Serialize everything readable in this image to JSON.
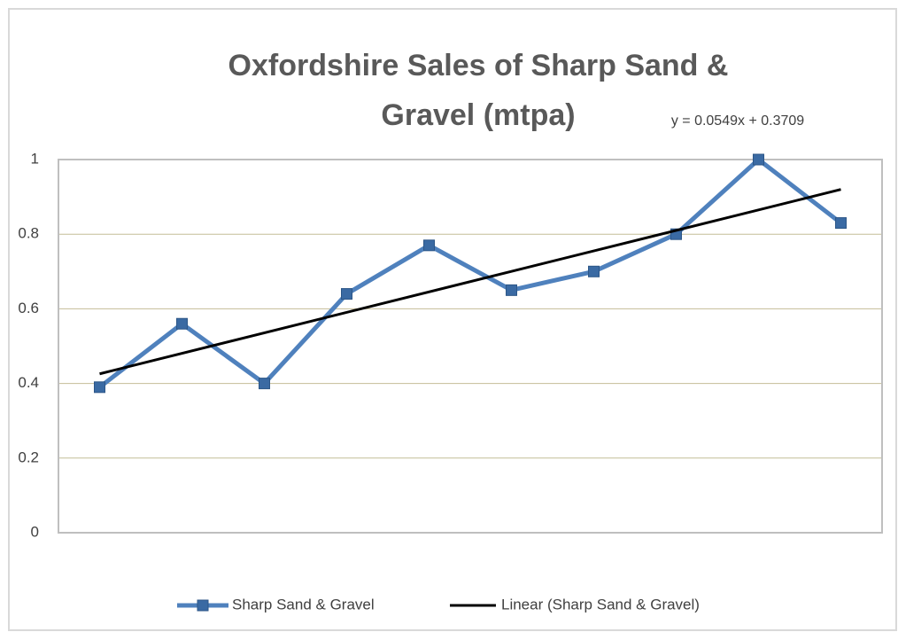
{
  "chart_data": {
    "type": "line",
    "title": "Oxfordshire Sales of Sharp Sand & Gravel (mtpa)",
    "categories": [
      null,
      null,
      null,
      null,
      null,
      null,
      null,
      null,
      null,
      null
    ],
    "series": [
      {
        "name": "Sharp Sand & Gravel",
        "color": "#4f81bd",
        "values": [
          0.39,
          0.56,
          0.4,
          0.64,
          0.77,
          0.65,
          0.7,
          0.8,
          1.0,
          0.83
        ]
      }
    ],
    "trendline": {
      "name": "Linear (Sharp Sand & Gravel)",
      "color": "#000000",
      "equation": "y = 0.0549x + 0.3709",
      "slope": 0.0549,
      "intercept": 0.3709
    },
    "ylim": [
      0,
      1
    ],
    "yticks": [
      0,
      0.2,
      0.4,
      0.6,
      0.8,
      1
    ],
    "grid": true,
    "legend": "bottom"
  }
}
